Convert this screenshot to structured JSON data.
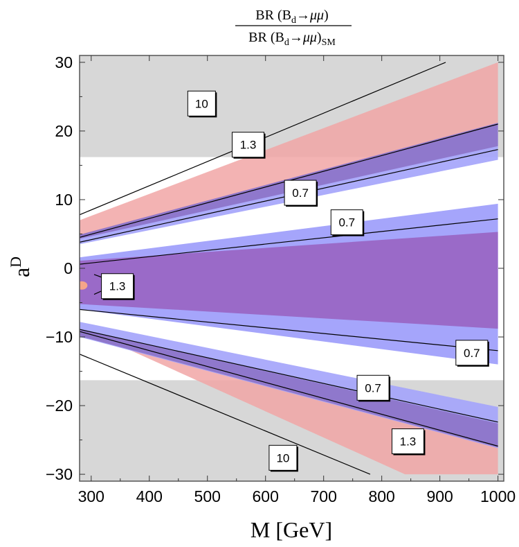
{
  "chart_data": {
    "type": "contour",
    "title": {
      "numerator": {
        "prefix": "BR (B",
        "sub": "d",
        "arrow": "→",
        "mumu": "μμ",
        "suffix": ")"
      },
      "denominator": {
        "prefix": "BR (B",
        "sub": "d",
        "arrow": "→",
        "mumu": "μμ",
        "suffix": ")",
        "tail_sub": "SM"
      }
    },
    "xlabel": "M [GeV]",
    "ylabel": {
      "base": "a",
      "sup": "D"
    },
    "xlim": [
      280,
      1010
    ],
    "ylim": [
      -31,
      31
    ],
    "xticks": [
      300,
      400,
      500,
      600,
      700,
      800,
      900,
      1000
    ],
    "yticks": [
      30,
      20,
      10,
      0,
      -10,
      -20,
      -30
    ],
    "ytick_labels": [
      "30",
      "20",
      "10",
      "0",
      "−10",
      "−20",
      "−30"
    ],
    "colors": {
      "excluded_gray": "#d7d7d7",
      "red_band": "#f1a6a6",
      "blue_band": "#a5a5fb",
      "purple_overlap": "#9a6ac8",
      "dark_overlap": "#8c72c6",
      "mauve_overlap": "#c99494",
      "contour_line": "#000000"
    },
    "regions": {
      "excluded": [
        {
          "name": "upper",
          "y_range": [
            16.2,
            31
          ]
        },
        {
          "name": "lower",
          "y_range": [
            -31,
            -16.3
          ]
        }
      ],
      "red_band_upper": [
        [
          280,
          4.2
        ],
        [
          1000,
          21.2
        ],
        [
          1000,
          30
        ],
        [
          280,
          7
        ]
      ],
      "red_band_lower": [
        [
          280,
          -8.6
        ],
        [
          840,
          -30
        ],
        [
          1000,
          -30
        ],
        [
          1000,
          -26
        ],
        [
          280,
          -9.8
        ]
      ],
      "blue_band_upper": [
        [
          280,
          3.5
        ],
        [
          1000,
          15.8
        ],
        [
          1000,
          21.2
        ],
        [
          280,
          4.8
        ]
      ],
      "blue_band_lower": [
        [
          280,
          -7.8
        ],
        [
          1000,
          -20.2
        ],
        [
          1000,
          -26.2
        ],
        [
          280,
          -10
        ]
      ],
      "blue_band_center": [
        [
          280,
          1.6
        ],
        [
          1000,
          9.4
        ],
        [
          1000,
          -14
        ],
        [
          280,
          -6
        ]
      ],
      "purple_center": [
        [
          280,
          1.1
        ],
        [
          1000,
          5.3
        ],
        [
          1000,
          -8.8
        ],
        [
          280,
          -5.2
        ]
      ],
      "purple_upper": [
        [
          280,
          4.3
        ],
        [
          1000,
          17.8
        ],
        [
          1000,
          21.2
        ],
        [
          280,
          4.9
        ]
      ],
      "purple_lower": [
        [
          280,
          -8.9
        ],
        [
          1000,
          -22.6
        ],
        [
          1000,
          -26.1
        ],
        [
          280,
          -9.9
        ]
      ]
    },
    "contours": [
      {
        "label": "10",
        "points": [
          [
            280,
            7.8
          ],
          [
            910,
            30
          ]
        ],
        "label_at": [
          490,
          24
        ]
      },
      {
        "label": "1.3",
        "points": [
          [
            280,
            4.5
          ],
          [
            1000,
            21
          ]
        ],
        "label_at": [
          570,
          18
        ]
      },
      {
        "label": "0.7",
        "points": [
          [
            280,
            3.8
          ],
          [
            1000,
            17.3
          ]
        ],
        "label_at": [
          660,
          11
        ]
      },
      {
        "label": "0.7",
        "points": [
          [
            280,
            0.6
          ],
          [
            1000,
            7.2
          ]
        ],
        "label_at": [
          740,
          6.7
        ]
      },
      {
        "label": "0.7",
        "points": [
          [
            280,
            -6
          ],
          [
            1000,
            -12
          ]
        ],
        "label_at": [
          955,
          -12.3
        ]
      },
      {
        "label": "0.7",
        "points": [
          [
            280,
            -8.9
          ],
          [
            1000,
            -22.4
          ]
        ],
        "label_at": [
          785,
          -17.4
        ]
      },
      {
        "label": "1.3",
        "points": [
          [
            280,
            -9.2
          ],
          [
            1000,
            -25.9
          ]
        ],
        "label_at": [
          845,
          -25.2
        ]
      },
      {
        "label": "10",
        "points": [
          [
            280,
            -12.5
          ],
          [
            780,
            -30
          ]
        ],
        "label_at": [
          630,
          -27.6
        ]
      },
      {
        "label": "1.3",
        "points": [
          [
            305,
            -3.8
          ],
          [
            318,
            -3.3
          ],
          [
            325,
            -2.3
          ],
          [
            318,
            -1.3
          ],
          [
            305,
            -0.9
          ]
        ],
        "label_at": [
          345,
          -2.6
        ]
      }
    ],
    "orange_spot": {
      "x": 284,
      "y": -2.5
    }
  }
}
